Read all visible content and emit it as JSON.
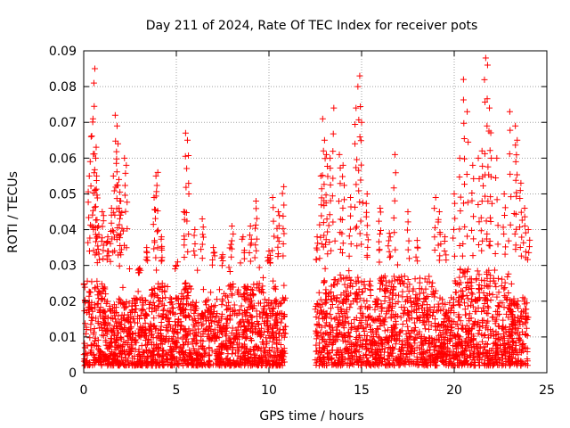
{
  "chart_data": {
    "type": "scatter",
    "title": "Day 211 of 2024, Rate Of TEC Index for receiver pots",
    "xlabel": "GPS time / hours",
    "ylabel": "ROTI / TECUs",
    "xlim": [
      0,
      25
    ],
    "ylim": [
      0,
      0.09
    ],
    "xticks": [
      {
        "value": 0,
        "label": "0"
      },
      {
        "value": 5,
        "label": "5"
      },
      {
        "value": 10,
        "label": "10"
      },
      {
        "value": 15,
        "label": "15"
      },
      {
        "value": 20,
        "label": "20"
      },
      {
        "value": 25,
        "label": "25"
      }
    ],
    "yticks": [
      {
        "value": 0,
        "label": "0"
      },
      {
        "value": 0.01,
        "label": "0.01"
      },
      {
        "value": 0.02,
        "label": "0.02"
      },
      {
        "value": 0.03,
        "label": "0.03"
      },
      {
        "value": 0.04,
        "label": "0.04"
      },
      {
        "value": 0.05,
        "label": "0.05"
      },
      {
        "value": 0.06,
        "label": "0.06"
      },
      {
        "value": 0.07,
        "label": "0.07"
      },
      {
        "value": 0.08,
        "label": "0.08"
      },
      {
        "value": 0.09,
        "label": "0.09"
      }
    ],
    "grid": true,
    "marker": "plus",
    "color": "#ff0000",
    "data_gap_hours": [
      10.9,
      12.5
    ],
    "series": [
      {
        "name": "ROTI",
        "x": [
          0.3,
          0.4,
          0.5,
          0.55,
          0.6,
          0.65,
          0.7,
          0.8,
          1.0,
          1.3,
          1.5,
          1.6,
          1.7,
          1.8,
          1.85,
          1.9,
          2.0,
          2.2,
          2.3,
          3.0,
          3.4,
          3.8,
          3.9,
          4.0,
          4.2,
          5.0,
          5.4,
          5.5,
          5.6,
          6.0,
          6.4,
          7.0,
          7.5,
          8.0,
          8.6,
          9.0,
          9.3,
          10.0,
          10.2,
          10.5,
          10.8,
          12.6,
          12.8,
          12.9,
          13.0,
          13.1,
          13.3,
          13.5,
          13.8,
          14.0,
          14.4,
          14.7,
          14.8,
          14.9,
          15.0,
          15.3,
          16.0,
          16.5,
          16.8,
          17.5,
          18.0,
          19.0,
          19.2,
          19.5,
          20.0,
          20.3,
          20.5,
          20.7,
          21.0,
          21.3,
          21.5,
          21.7,
          21.8,
          21.9,
          22.0,
          22.3,
          22.7,
          23.0,
          23.3,
          23.4,
          23.6,
          23.8,
          24.0
        ],
        "y": [
          0.055,
          0.066,
          0.071,
          0.081,
          0.085,
          0.06,
          0.055,
          0.041,
          0.045,
          0.038,
          0.046,
          0.055,
          0.072,
          0.069,
          0.064,
          0.054,
          0.048,
          0.06,
          0.058,
          0.028,
          0.035,
          0.049,
          0.055,
          0.056,
          0.038,
          0.03,
          0.045,
          0.067,
          0.065,
          0.04,
          0.043,
          0.035,
          0.033,
          0.041,
          0.038,
          0.041,
          0.048,
          0.034,
          0.049,
          0.045,
          0.052,
          0.038,
          0.055,
          0.071,
          0.065,
          0.061,
          0.06,
          0.074,
          0.061,
          0.058,
          0.049,
          0.074,
          0.08,
          0.083,
          0.07,
          0.05,
          0.046,
          0.039,
          0.061,
          0.045,
          0.037,
          0.049,
          0.045,
          0.038,
          0.05,
          0.06,
          0.082,
          0.073,
          0.058,
          0.06,
          0.062,
          0.088,
          0.086,
          0.074,
          0.06,
          0.06,
          0.05,
          0.073,
          0.069,
          0.065,
          0.053,
          0.046,
          0.04
        ]
      }
    ],
    "background_band": {
      "description": "dense cloud of ROTI measurements between 0.002 and 0.03 TECUs across hours 0-10.9 and 12.5-24"
    }
  }
}
